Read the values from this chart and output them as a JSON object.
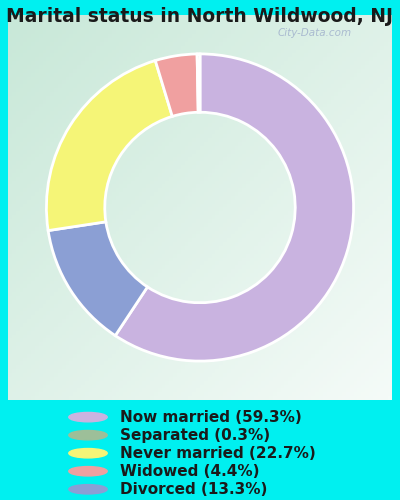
{
  "title": "Marital status in North Wildwood, NJ",
  "slices": [
    59.3,
    13.3,
    22.7,
    4.4,
    0.3
  ],
  "labels": [
    "Now married (59.3%)",
    "Separated (0.3%)",
    "Never married (22.7%)",
    "Widowed (4.4%)",
    "Divorced (13.3%)"
  ],
  "legend_colors": [
    "#c9b3e0",
    "#9dbf99",
    "#f5f577",
    "#f0a0a0",
    "#8b9fd4"
  ],
  "slice_colors": [
    "#c9b3e0",
    "#8b9fd4",
    "#f5f577",
    "#f0a0a0",
    "#9dbf99"
  ],
  "outer_bg": "#00f0f0",
  "chart_bg_left": "#c8e8d8",
  "chart_bg_right": "#f0f8f4",
  "title_color": "#1a1a1a",
  "title_fontsize": 13.5,
  "legend_fontsize": 11,
  "watermark": "City-Data.com",
  "watermark_color": "#aabbd0"
}
